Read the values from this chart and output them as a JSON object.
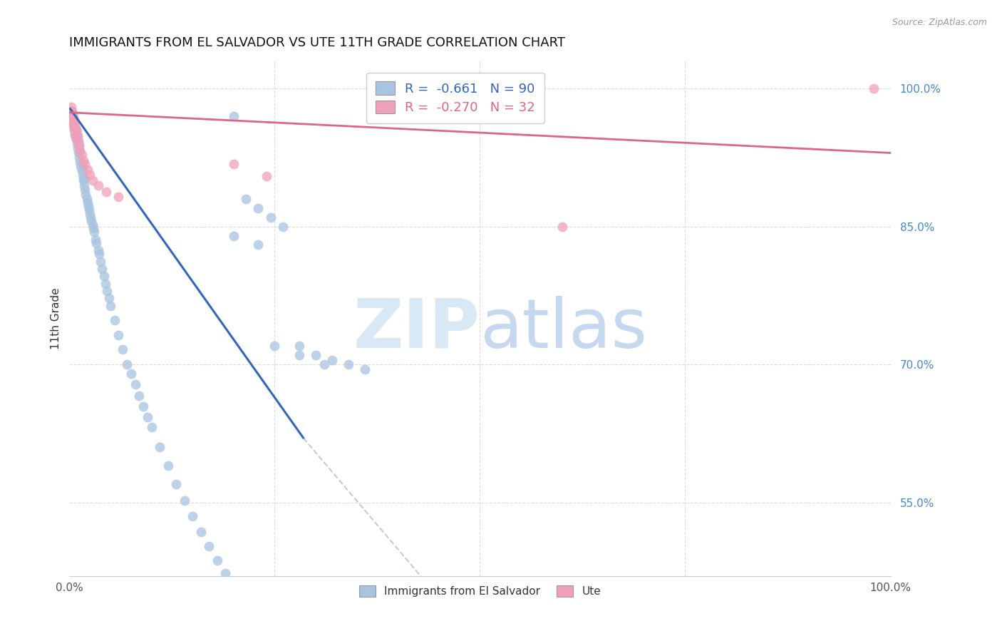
{
  "title": "IMMIGRANTS FROM EL SALVADOR VS UTE 11TH GRADE CORRELATION CHART",
  "source": "Source: ZipAtlas.com",
  "ylabel": "11th Grade",
  "xlim": [
    0.0,
    1.0
  ],
  "ylim": [
    0.47,
    1.03
  ],
  "yticks": [
    0.55,
    0.7,
    0.85,
    1.0
  ],
  "ytick_labels": [
    "55.0%",
    "70.0%",
    "85.0%",
    "100.0%"
  ],
  "blue_scatter_x": [
    0.001,
    0.002,
    0.002,
    0.003,
    0.003,
    0.004,
    0.004,
    0.005,
    0.005,
    0.006,
    0.006,
    0.007,
    0.007,
    0.008,
    0.008,
    0.009,
    0.009,
    0.01,
    0.01,
    0.011,
    0.011,
    0.012,
    0.012,
    0.013,
    0.013,
    0.014,
    0.015,
    0.015,
    0.016,
    0.016,
    0.017,
    0.018,
    0.018,
    0.019,
    0.02,
    0.021,
    0.022,
    0.023,
    0.024,
    0.025,
    0.026,
    0.027,
    0.028,
    0.029,
    0.03,
    0.032,
    0.033,
    0.035,
    0.036,
    0.038,
    0.04,
    0.042,
    0.044,
    0.046,
    0.048,
    0.05,
    0.055,
    0.06,
    0.065,
    0.07,
    0.075,
    0.08,
    0.085,
    0.09,
    0.095,
    0.1,
    0.11,
    0.12,
    0.13,
    0.14,
    0.15,
    0.16,
    0.17,
    0.18,
    0.19,
    0.2,
    0.215,
    0.23,
    0.245,
    0.26,
    0.28,
    0.3,
    0.32,
    0.34,
    0.36,
    0.2,
    0.23,
    0.25,
    0.28,
    0.31
  ],
  "blue_scatter_y": [
    0.97,
    0.968,
    0.975,
    0.965,
    0.972,
    0.962,
    0.97,
    0.96,
    0.967,
    0.955,
    0.963,
    0.95,
    0.958,
    0.945,
    0.955,
    0.94,
    0.952,
    0.935,
    0.948,
    0.93,
    0.943,
    0.925,
    0.938,
    0.92,
    0.932,
    0.915,
    0.91,
    0.918,
    0.905,
    0.912,
    0.9,
    0.895,
    0.902,
    0.89,
    0.885,
    0.88,
    0.876,
    0.872,
    0.868,
    0.864,
    0.86,
    0.856,
    0.852,
    0.848,
    0.844,
    0.836,
    0.832,
    0.824,
    0.82,
    0.812,
    0.804,
    0.796,
    0.788,
    0.78,
    0.772,
    0.764,
    0.748,
    0.732,
    0.716,
    0.7,
    0.69,
    0.678,
    0.666,
    0.654,
    0.643,
    0.632,
    0.61,
    0.59,
    0.57,
    0.552,
    0.535,
    0.518,
    0.502,
    0.487,
    0.473,
    0.97,
    0.88,
    0.87,
    0.86,
    0.85,
    0.72,
    0.71,
    0.705,
    0.7,
    0.695,
    0.84,
    0.83,
    0.72,
    0.71,
    0.7
  ],
  "pink_scatter_x": [
    0.001,
    0.002,
    0.002,
    0.003,
    0.003,
    0.004,
    0.004,
    0.005,
    0.005,
    0.006,
    0.006,
    0.007,
    0.007,
    0.008,
    0.008,
    0.01,
    0.011,
    0.012,
    0.013,
    0.015,
    0.017,
    0.019,
    0.022,
    0.025,
    0.028,
    0.035,
    0.045,
    0.06,
    0.2,
    0.24,
    0.6,
    0.98
  ],
  "pink_scatter_y": [
    0.975,
    0.972,
    0.98,
    0.968,
    0.975,
    0.965,
    0.972,
    0.96,
    0.968,
    0.955,
    0.963,
    0.95,
    0.958,
    0.945,
    0.955,
    0.948,
    0.942,
    0.938,
    0.932,
    0.928,
    0.922,
    0.918,
    0.912,
    0.906,
    0.9,
    0.895,
    0.888,
    0.882,
    0.918,
    0.905,
    0.85,
    1.0
  ],
  "scatter_blue_color": "#a8c4e0",
  "scatter_pink_color": "#f0a0b8",
  "line_blue_color": "#3366bb",
  "line_dashed_color": "#99aabb",
  "line_pink_color": "#dd6688",
  "grid_color": "#dddddd",
  "background_color": "#ffffff",
  "title_fontsize": 13,
  "axis_label_fontsize": 11,
  "tick_fontsize": 11,
  "right_tick_color": "#4488cc",
  "blue_line_start_x": 0.001,
  "blue_line_start_y": 0.978,
  "blue_line_solid_end_x": 0.285,
  "blue_line_solid_end_y": 0.62,
  "blue_line_dashed_end_x": 0.58,
  "blue_line_dashed_end_y": 0.31,
  "pink_line_start_x": 0.001,
  "pink_line_start_y": 0.974,
  "pink_line_end_x": 1.0,
  "pink_line_end_y": 0.93
}
